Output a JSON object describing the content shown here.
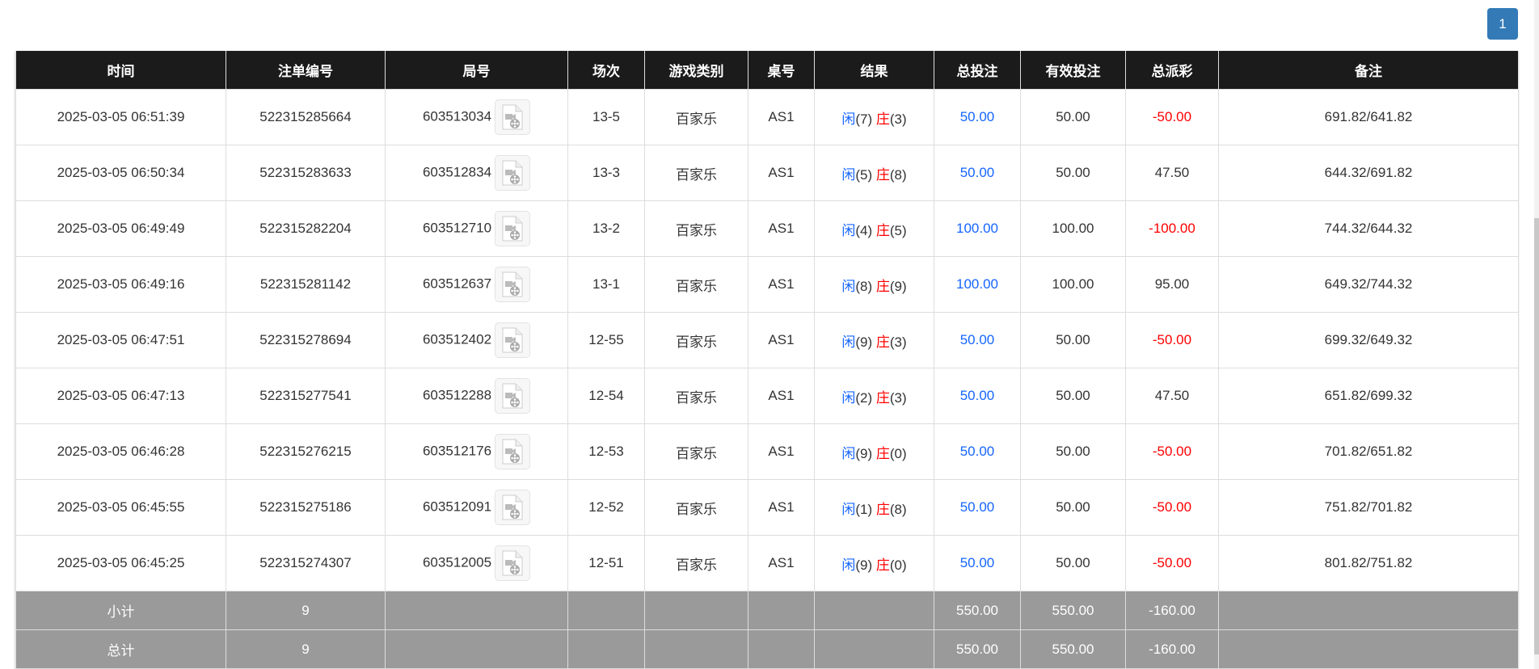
{
  "pagination": {
    "current": "1"
  },
  "colors": {
    "header_bg": "#1b1b1b",
    "player": "#1565ff",
    "banker": "#ff0000",
    "negative": "#ff0000",
    "summary_bg": "#9a9a9a",
    "pager": "#337ab7"
  },
  "table": {
    "headers": [
      "时间",
      "注单编号",
      "局号",
      "场次",
      "游戏类别",
      "桌号",
      "结果",
      "总投注",
      "有效投注",
      "总派彩",
      "备注"
    ],
    "rows": [
      {
        "time": "2025-03-05 06:51:39",
        "bet_id": "522315285664",
        "round": "603513034",
        "shoe": "13-5",
        "game": "百家乐",
        "table": "AS1",
        "player": "闲",
        "player_pts": "(7)",
        "banker": "庄",
        "banker_pts": "(3)",
        "bet": "50.00",
        "valid": "50.00",
        "payout": "-50.00",
        "note": "691.82/641.82"
      },
      {
        "time": "2025-03-05 06:50:34",
        "bet_id": "522315283633",
        "round": "603512834",
        "shoe": "13-3",
        "game": "百家乐",
        "table": "AS1",
        "player": "闲",
        "player_pts": "(5)",
        "banker": "庄",
        "banker_pts": "(8)",
        "bet": "50.00",
        "valid": "50.00",
        "payout": "47.50",
        "note": "644.32/691.82"
      },
      {
        "time": "2025-03-05 06:49:49",
        "bet_id": "522315282204",
        "round": "603512710",
        "shoe": "13-2",
        "game": "百家乐",
        "table": "AS1",
        "player": "闲",
        "player_pts": "(4)",
        "banker": "庄",
        "banker_pts": "(5)",
        "bet": "100.00",
        "valid": "100.00",
        "payout": "-100.00",
        "note": "744.32/644.32"
      },
      {
        "time": "2025-03-05 06:49:16",
        "bet_id": "522315281142",
        "round": "603512637",
        "shoe": "13-1",
        "game": "百家乐",
        "table": "AS1",
        "player": "闲",
        "player_pts": "(8)",
        "banker": "庄",
        "banker_pts": "(9)",
        "bet": "100.00",
        "valid": "100.00",
        "payout": "95.00",
        "note": "649.32/744.32"
      },
      {
        "time": "2025-03-05 06:47:51",
        "bet_id": "522315278694",
        "round": "603512402",
        "shoe": "12-55",
        "game": "百家乐",
        "table": "AS1",
        "player": "闲",
        "player_pts": "(9)",
        "banker": "庄",
        "banker_pts": "(3)",
        "bet": "50.00",
        "valid": "50.00",
        "payout": "-50.00",
        "note": "699.32/649.32"
      },
      {
        "time": "2025-03-05 06:47:13",
        "bet_id": "522315277541",
        "round": "603512288",
        "shoe": "12-54",
        "game": "百家乐",
        "table": "AS1",
        "player": "闲",
        "player_pts": "(2)",
        "banker": "庄",
        "banker_pts": "(3)",
        "bet": "50.00",
        "valid": "50.00",
        "payout": "47.50",
        "note": "651.82/699.32"
      },
      {
        "time": "2025-03-05 06:46:28",
        "bet_id": "522315276215",
        "round": "603512176",
        "shoe": "12-53",
        "game": "百家乐",
        "table": "AS1",
        "player": "闲",
        "player_pts": "(9)",
        "banker": "庄",
        "banker_pts": "(0)",
        "bet": "50.00",
        "valid": "50.00",
        "payout": "-50.00",
        "note": "701.82/651.82"
      },
      {
        "time": "2025-03-05 06:45:55",
        "bet_id": "522315275186",
        "round": "603512091",
        "shoe": "12-52",
        "game": "百家乐",
        "table": "AS1",
        "player": "闲",
        "player_pts": "(1)",
        "banker": "庄",
        "banker_pts": "(8)",
        "bet": "50.00",
        "valid": "50.00",
        "payout": "-50.00",
        "note": "751.82/701.82"
      },
      {
        "time": "2025-03-05 06:45:25",
        "bet_id": "522315274307",
        "round": "603512005",
        "shoe": "12-51",
        "game": "百家乐",
        "table": "AS1",
        "player": "闲",
        "player_pts": "(9)",
        "banker": "庄",
        "banker_pts": "(0)",
        "bet": "50.00",
        "valid": "50.00",
        "payout": "-50.00",
        "note": "801.82/751.82"
      }
    ],
    "summary": [
      {
        "label": "小计",
        "count": "9",
        "bet": "550.00",
        "valid": "550.00",
        "payout": "-160.00"
      },
      {
        "label": "总计",
        "count": "9",
        "bet": "550.00",
        "valid": "550.00",
        "payout": "-160.00"
      }
    ]
  }
}
